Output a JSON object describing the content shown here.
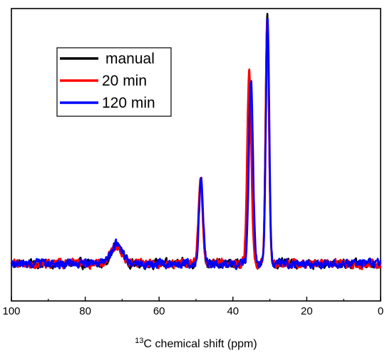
{
  "chart_data": {
    "type": "line",
    "title": "",
    "xlabel_sup": "13",
    "xlabel": "C chemical shift (ppm)",
    "ylabel": "",
    "x_reversed": true,
    "xlim": [
      100,
      0
    ],
    "ylim": [
      -0.15,
      1.03
    ],
    "xticks": [
      100,
      80,
      60,
      40,
      20,
      0
    ],
    "xtick_labels": [
      "100",
      "80",
      "60",
      "40",
      "20",
      "0"
    ],
    "grid": false,
    "legend_position": "top-left",
    "series": [
      {
        "name": "manual",
        "color": "#000000",
        "peaks": [
          {
            "x": 71.5,
            "height": 0.075,
            "width": 1.5
          },
          {
            "x": 48.7,
            "height": 0.34,
            "width": 0.55
          },
          {
            "x": 35.2,
            "height": 0.72,
            "width": 0.55
          },
          {
            "x": 30.7,
            "height": 1.0,
            "width": 0.45
          }
        ]
      },
      {
        "name": "20 min",
        "color": "#ff0000",
        "peaks": [
          {
            "x": 71.5,
            "height": 0.07,
            "width": 1.5
          },
          {
            "x": 48.8,
            "height": 0.35,
            "width": 0.55
          },
          {
            "x": 35.6,
            "height": 0.77,
            "width": 0.55
          },
          {
            "x": 30.7,
            "height": 0.98,
            "width": 0.45
          }
        ]
      },
      {
        "name": "120 min",
        "color": "#0000ff",
        "peaks": [
          {
            "x": 71.4,
            "height": 0.08,
            "width": 1.5
          },
          {
            "x": 48.6,
            "height": 0.34,
            "width": 0.55
          },
          {
            "x": 35.1,
            "height": 0.74,
            "width": 0.55
          },
          {
            "x": 30.6,
            "height": 1.0,
            "width": 0.45
          }
        ]
      }
    ]
  }
}
